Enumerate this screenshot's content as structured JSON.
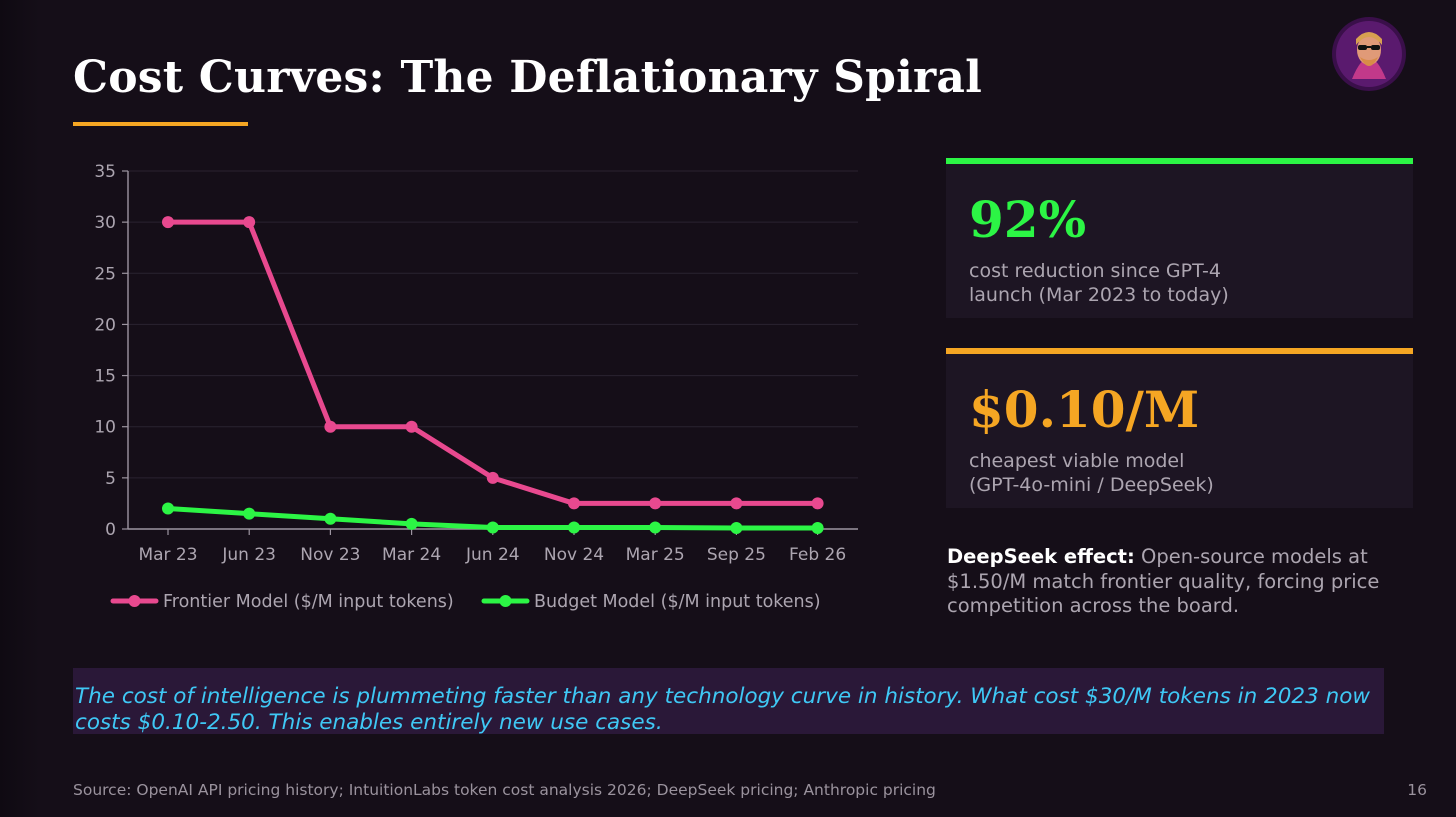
{
  "slide": {
    "title": "Cost Curves: The Deflationary Spiral",
    "page_number": "16",
    "accent_color": "#f5a623"
  },
  "avatar": {
    "icon": "avatar-person-sunglasses-icon"
  },
  "chart_data": {
    "type": "line",
    "categories": [
      "Mar 23",
      "Jun 23",
      "Nov 23",
      "Mar 24",
      "Jun 24",
      "Nov 24",
      "Mar 25",
      "Sep 25",
      "Feb 26"
    ],
    "series": [
      {
        "name": "Frontier Model ($/M input tokens)",
        "color": "#e8498f",
        "values": [
          30,
          30,
          10,
          10,
          5,
          2.5,
          2.5,
          2.5,
          2.5
        ]
      },
      {
        "name": "Budget Model ($/M input tokens)",
        "color": "#2cf545",
        "values": [
          2,
          1.5,
          1,
          0.5,
          0.15,
          0.15,
          0.15,
          0.1,
          0.1
        ]
      }
    ],
    "yticks": [
      0,
      5,
      10,
      15,
      20,
      25,
      30,
      35
    ],
    "ylim": [
      0,
      35
    ],
    "xlabel": "",
    "ylabel": "",
    "grid": true,
    "legend": "bottom"
  },
  "stats": [
    {
      "value": "92%",
      "description": "cost reduction since GPT-4\nlaunch (Mar 2023 to today)",
      "color": "#2cf545"
    },
    {
      "value": "$0.10/M",
      "description": "cheapest viable model\n(GPT-4o-mini / DeepSeek)",
      "color": "#f5a623"
    }
  ],
  "effect": {
    "label": "DeepSeek effect:",
    "text": " Open-source models at $1.50/M match frontier quality, forcing price competition across the board."
  },
  "quote": "The cost of intelligence is plummeting faster than any technology curve in history. What cost $30/M tokens in 2023 now costs $0.10-2.50. This enables entirely new use cases.",
  "footer": {
    "source": "Source: OpenAI API pricing history; IntuitionLabs token cost analysis 2026; DeepSeek pricing; Anthropic pricing"
  }
}
